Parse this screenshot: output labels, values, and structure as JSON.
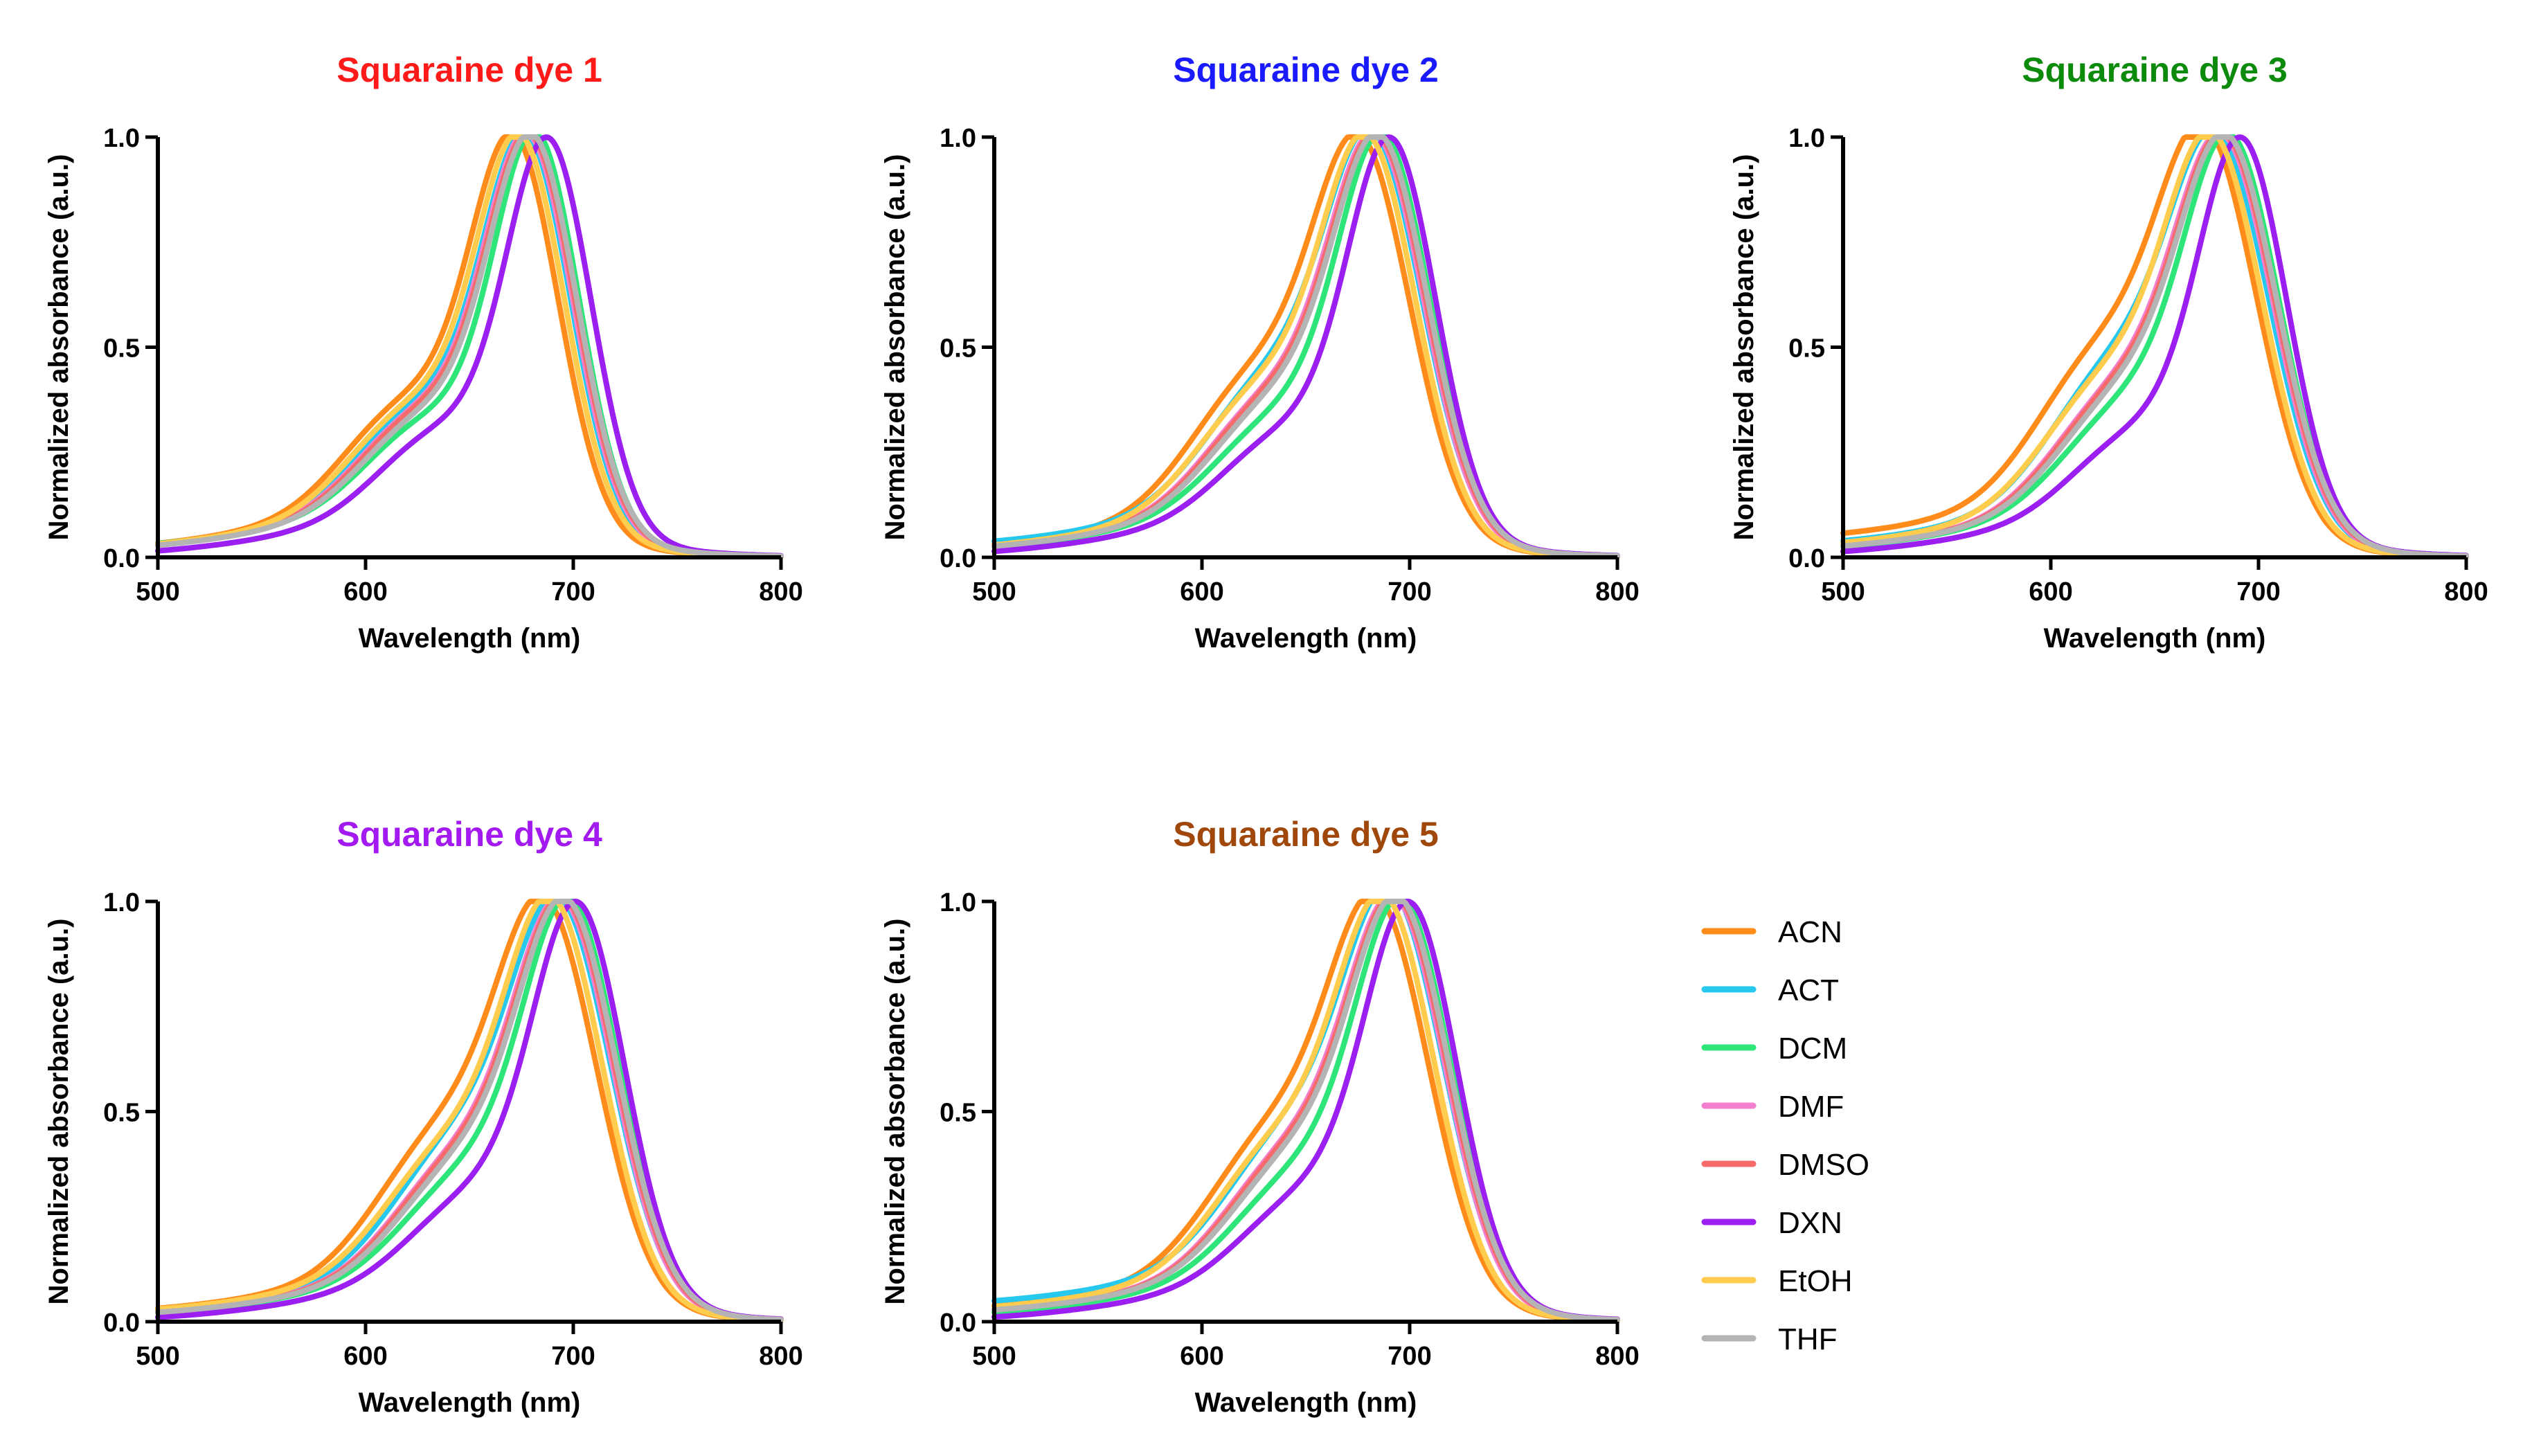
{
  "chart_data": {
    "type": "line",
    "figure": "Normalized absorbance spectra of squaraine dyes in different solvents",
    "solvents": [
      {
        "name": "ACN",
        "color": "#FF8C1A"
      },
      {
        "name": "ACT",
        "color": "#27C8EE"
      },
      {
        "name": "DCM",
        "color": "#2EE57A"
      },
      {
        "name": "DMF",
        "color": "#F57FCF"
      },
      {
        "name": "DMSO",
        "color": "#F56B6B"
      },
      {
        "name": "DXN",
        "color": "#9B1FF0"
      },
      {
        "name": "EtOH",
        "color": "#FFCC4D"
      },
      {
        "name": "THF",
        "color": "#B4B4B4"
      }
    ],
    "panels": [
      {
        "title": "Squaraine dye 1",
        "title_color": "#FF1A1A",
        "xlabel": "Wavelength (nm)",
        "ylabel": "Normalized absorbance (a.u.)",
        "xlim": [
          500,
          800
        ],
        "ylim": [
          0,
          1
        ],
        "xticks": [
          "500",
          "600",
          "700",
          "800"
        ],
        "yticks": [
          "0.0",
          "0.5",
          "1.0"
        ],
        "series": [
          {
            "name": "ACN",
            "peak": 670,
            "width": 22,
            "baseline": 0.01,
            "shoulder": 0.26
          },
          {
            "name": "ACT",
            "peak": 676,
            "width": 22,
            "baseline": 0.01,
            "shoulder": 0.25
          },
          {
            "name": "DCM",
            "peak": 681,
            "width": 21,
            "baseline": 0.015,
            "shoulder": 0.22
          },
          {
            "name": "DMF",
            "peak": 677,
            "width": 22,
            "baseline": 0.01,
            "shoulder": 0.24
          },
          {
            "name": "DMSO",
            "peak": 678,
            "width": 22,
            "baseline": 0.01,
            "shoulder": 0.24
          },
          {
            "name": "DXN",
            "peak": 687,
            "width": 21,
            "baseline": 0.0,
            "shoulder": 0.21
          },
          {
            "name": "EtOH",
            "peak": 673,
            "width": 22,
            "baseline": 0.01,
            "shoulder": 0.25
          },
          {
            "name": "THF",
            "peak": 679,
            "width": 22,
            "baseline": 0.01,
            "shoulder": 0.23
          }
        ]
      },
      {
        "title": "Squaraine dye 2",
        "title_color": "#1A1AFF",
        "xlabel": "Wavelength (nm)",
        "ylabel": "Normalized absorbance (a.u.)",
        "xlim": [
          500,
          800
        ],
        "ylim": [
          0,
          1
        ],
        "xticks": [
          "500",
          "600",
          "700",
          "800"
        ],
        "yticks": [
          "0.0",
          "0.5",
          "1.0"
        ],
        "series": [
          {
            "name": "ACN",
            "peak": 674,
            "width": 25,
            "baseline": 0.01,
            "shoulder": 0.3
          },
          {
            "name": "ACT",
            "peak": 680,
            "width": 25,
            "baseline": 0.02,
            "shoulder": 0.28
          },
          {
            "name": "DCM",
            "peak": 686,
            "width": 23,
            "baseline": 0.01,
            "shoulder": 0.22
          },
          {
            "name": "DMF",
            "peak": 682,
            "width": 24,
            "baseline": 0.01,
            "shoulder": 0.26
          },
          {
            "name": "DMSO",
            "peak": 683,
            "width": 24,
            "baseline": 0.01,
            "shoulder": 0.26
          },
          {
            "name": "DXN",
            "peak": 690,
            "width": 22,
            "baseline": 0.0,
            "shoulder": 0.2
          },
          {
            "name": "EtOH",
            "peak": 678,
            "width": 24,
            "baseline": 0.01,
            "shoulder": 0.28
          },
          {
            "name": "THF",
            "peak": 684,
            "width": 24,
            "baseline": 0.01,
            "shoulder": 0.25
          }
        ]
      },
      {
        "title": "Squaraine dye 3",
        "title_color": "#0B8A0B",
        "xlabel": "Wavelength (nm)",
        "ylabel": "Normalized absorbance (a.u.)",
        "xlim": [
          500,
          800
        ],
        "ylim": [
          0,
          1
        ],
        "xticks": [
          "500",
          "600",
          "700",
          "800"
        ],
        "yticks": [
          "0.0",
          "0.5",
          "1.0"
        ],
        "series": [
          {
            "name": "ACN",
            "peak": 672,
            "width": 26,
            "baseline": 0.035,
            "shoulder": 0.32
          },
          {
            "name": "ACT",
            "peak": 678,
            "width": 26,
            "baseline": 0.02,
            "shoulder": 0.3
          },
          {
            "name": "DCM",
            "peak": 685,
            "width": 24,
            "baseline": 0.01,
            "shoulder": 0.24
          },
          {
            "name": "DMF",
            "peak": 681,
            "width": 25,
            "baseline": 0.01,
            "shoulder": 0.27
          },
          {
            "name": "DMSO",
            "peak": 682,
            "width": 25,
            "baseline": 0.01,
            "shoulder": 0.27
          },
          {
            "name": "DXN",
            "peak": 691,
            "width": 22,
            "baseline": 0.0,
            "shoulder": 0.2
          },
          {
            "name": "EtOH",
            "peak": 676,
            "width": 25,
            "baseline": 0.015,
            "shoulder": 0.29
          },
          {
            "name": "THF",
            "peak": 683,
            "width": 25,
            "baseline": 0.01,
            "shoulder": 0.26
          }
        ]
      },
      {
        "title": "Squaraine dye 4",
        "title_color": "#A31AF0",
        "xlabel": "Wavelength (nm)",
        "ylabel": "Normalized absorbance (a.u.)",
        "xlim": [
          500,
          800
        ],
        "ylim": [
          0,
          1
        ],
        "xticks": [
          "500",
          "600",
          "700",
          "800"
        ],
        "yticks": [
          "0.0",
          "0.5",
          "1.0"
        ],
        "series": [
          {
            "name": "ACN",
            "peak": 684,
            "width": 26,
            "baseline": 0.015,
            "shoulder": 0.3
          },
          {
            "name": "ACT",
            "peak": 691,
            "width": 26,
            "baseline": 0.015,
            "shoulder": 0.28
          },
          {
            "name": "DCM",
            "peak": 697,
            "width": 24,
            "baseline": 0.01,
            "shoulder": 0.23
          },
          {
            "name": "DMF",
            "peak": 693,
            "width": 25,
            "baseline": 0.01,
            "shoulder": 0.26
          },
          {
            "name": "DMSO",
            "peak": 694,
            "width": 25,
            "baseline": 0.01,
            "shoulder": 0.26
          },
          {
            "name": "DXN",
            "peak": 701,
            "width": 23,
            "baseline": 0.0,
            "shoulder": 0.2
          },
          {
            "name": "EtOH",
            "peak": 688,
            "width": 25,
            "baseline": 0.015,
            "shoulder": 0.28
          },
          {
            "name": "THF",
            "peak": 695,
            "width": 25,
            "baseline": 0.01,
            "shoulder": 0.25
          }
        ]
      },
      {
        "title": "Squaraine dye 5",
        "title_color": "#A0480B",
        "xlabel": "Wavelength (nm)",
        "ylabel": "Normalized absorbance (a.u.)",
        "xlim": [
          500,
          800
        ],
        "ylim": [
          0,
          1
        ],
        "xticks": [
          "500",
          "600",
          "700",
          "800"
        ],
        "yticks": [
          "0.0",
          "0.5",
          "1.0"
        ],
        "series": [
          {
            "name": "ACN",
            "peak": 682,
            "width": 26,
            "baseline": 0.02,
            "shoulder": 0.3
          },
          {
            "name": "ACT",
            "peak": 689,
            "width": 26,
            "baseline": 0.035,
            "shoulder": 0.28
          },
          {
            "name": "DCM",
            "peak": 695,
            "width": 24,
            "baseline": 0.01,
            "shoulder": 0.23
          },
          {
            "name": "DMF",
            "peak": 691,
            "width": 25,
            "baseline": 0.015,
            "shoulder": 0.27
          },
          {
            "name": "DMSO",
            "peak": 692,
            "width": 25,
            "baseline": 0.015,
            "shoulder": 0.27
          },
          {
            "name": "DXN",
            "peak": 699,
            "width": 23,
            "baseline": 0.0,
            "shoulder": 0.2
          },
          {
            "name": "EtOH",
            "peak": 686,
            "width": 25,
            "baseline": 0.02,
            "shoulder": 0.29
          },
          {
            "name": "THF",
            "peak": 693,
            "width": 25,
            "baseline": 0.015,
            "shoulder": 0.26
          }
        ]
      }
    ]
  }
}
